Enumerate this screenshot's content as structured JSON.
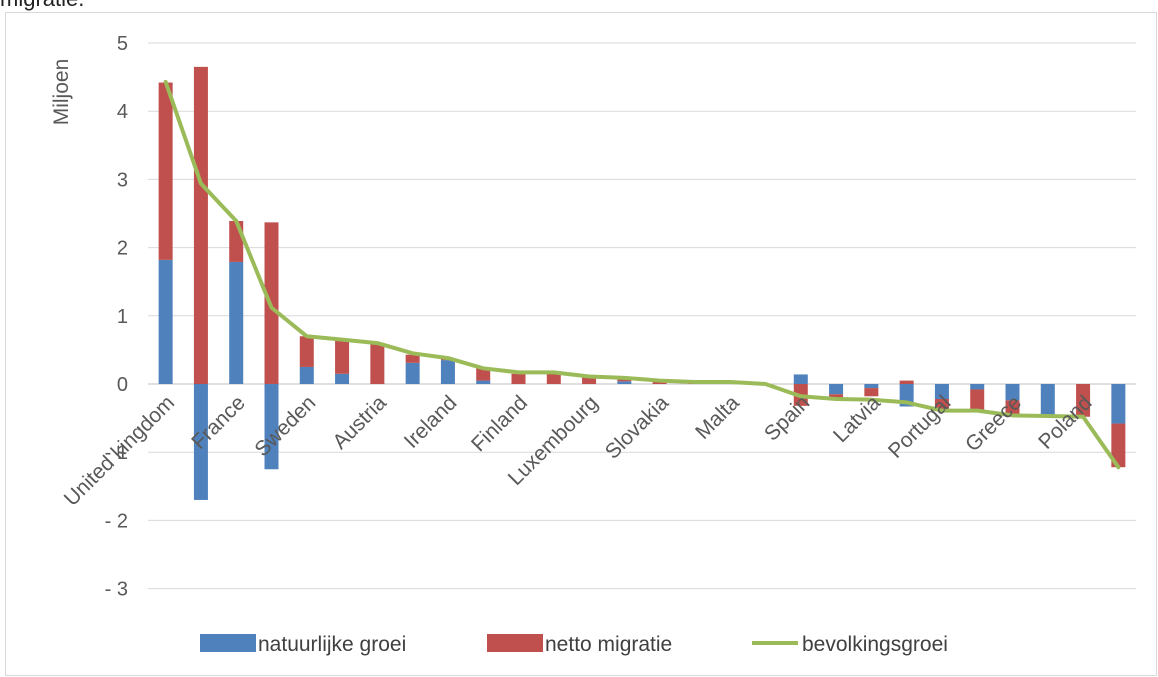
{
  "caption_fragment": "migratie.",
  "chart_data": {
    "type": "bar",
    "stacked": true,
    "ylabel": "Miljoen",
    "ylim": [
      -3,
      5
    ],
    "y_ticks": [
      5,
      4,
      3,
      2,
      1,
      0,
      -1,
      -2,
      -3
    ],
    "y_tick_labels": [
      "5",
      "4",
      "3",
      "2",
      "1",
      "0",
      "-  1",
      "-  2",
      "-  3"
    ],
    "grid": true,
    "legend_position": "bottom",
    "categories": [
      "United kingdom",
      "",
      "France",
      "",
      "Sweden",
      "",
      "Austria",
      "",
      "Ireland",
      "",
      "Finland",
      "",
      "Luxembourg",
      "",
      "Slovakia",
      "",
      "Malta",
      "",
      "Spain",
      "",
      "Latvia",
      "",
      "Portugal",
      "",
      "Greece",
      "",
      "Poland",
      ""
    ],
    "series": [
      {
        "name": "natuurlijke groei",
        "type": "bar",
        "color": "#4f81bd",
        "values": [
          1.82,
          -1.7,
          1.79,
          -1.25,
          0.25,
          0.15,
          0.0,
          0.31,
          0.35,
          0.05,
          0.0,
          0.0,
          0.0,
          0.04,
          0.0,
          0.0,
          0.0,
          0.0,
          0.14,
          -0.15,
          -0.06,
          -0.33,
          -0.22,
          -0.08,
          -0.24,
          -0.45,
          0.0,
          -0.58
        ]
      },
      {
        "name": "netto migratie",
        "type": "bar",
        "color": "#c0504d",
        "values": [
          2.6,
          4.65,
          0.6,
          2.37,
          0.45,
          0.48,
          0.58,
          0.12,
          0.02,
          0.18,
          0.15,
          0.15,
          0.1,
          0.04,
          0.04,
          0.02,
          0.03,
          0.0,
          -0.32,
          -0.07,
          -0.12,
          0.05,
          -0.17,
          -0.3,
          -0.22,
          0.0,
          -0.48,
          -0.64
        ]
      },
      {
        "name": "bevolkingsgroei",
        "type": "line",
        "color": "#9bbb59",
        "values": [
          4.43,
          2.94,
          2.39,
          1.12,
          0.7,
          0.65,
          0.6,
          0.45,
          0.38,
          0.23,
          0.17,
          0.17,
          0.11,
          0.09,
          0.05,
          0.03,
          0.03,
          0.0,
          -0.18,
          -0.22,
          -0.23,
          -0.27,
          -0.39,
          -0.39,
          -0.46,
          -0.47,
          -0.48,
          -1.22
        ]
      }
    ]
  }
}
